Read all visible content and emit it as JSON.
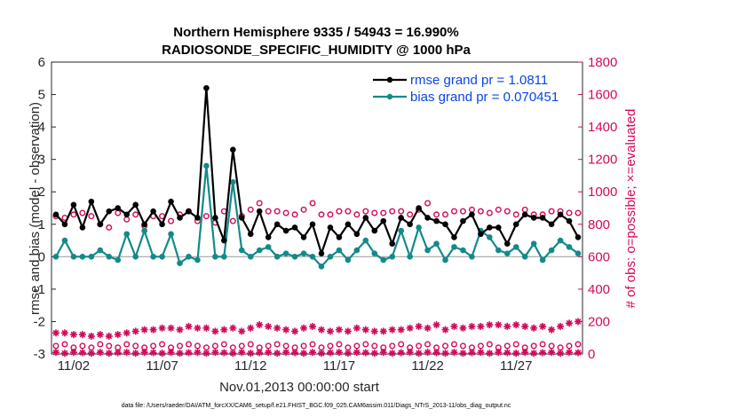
{
  "chart_data": {
    "type": "line",
    "title": "Northern Hemisphere 9335 / 54943 = 16.990%",
    "subtitle": "RADIOSONDE_SPECIFIC_HUMIDITY @ 1000 hPa",
    "xlabel": "Nov.01,2013 00:00:00 start",
    "ylabel": "rmse and bias (model - observation)",
    "y2label": "# of obs: o=possible; ×=evaluated",
    "footnote": "data file: /Users/raeder/DAI/ATM_forcXX/CAM6_setup/f.e21.FHIST_BGC.f09_025.CAM6assim.011/Diags_NTrS_2013-11/obs_diag_output.nc",
    "xlim": [
      0.5,
      60.5
    ],
    "ylim": [
      -3,
      6
    ],
    "y2lim": [
      0,
      1800
    ],
    "x_ticks": [
      {
        "x": 3,
        "label": "11/02"
      },
      {
        "x": 13,
        "label": "11/07"
      },
      {
        "x": 23,
        "label": "11/12"
      },
      {
        "x": 33,
        "label": "11/17"
      },
      {
        "x": 43,
        "label": "11/22"
      },
      {
        "x": 53,
        "label": "11/27"
      }
    ],
    "y_ticks": [
      -3,
      -2,
      -1,
      0,
      1,
      2,
      3,
      4,
      5,
      6
    ],
    "y2_ticks": [
      0,
      200,
      400,
      600,
      800,
      1000,
      1200,
      1400,
      1600,
      1800
    ],
    "colors": {
      "rmse": "#000000",
      "bias": "#138a8a",
      "obs": "#d10a5a",
      "legend_text": "#0b45e6",
      "zero_line": "#a6a6a6"
    },
    "series": [
      {
        "name": "rmse grand pr = 1.0811",
        "key": "rmse",
        "values": [
          1.3,
          1.0,
          1.6,
          0.9,
          1.7,
          1.0,
          1.4,
          1.5,
          1.3,
          1.6,
          1.0,
          1.4,
          1.0,
          1.7,
          1.2,
          1.4,
          1.2,
          5.2,
          1.2,
          0.5,
          3.3,
          1.2,
          0.7,
          1.4,
          0.6,
          1.0,
          0.8,
          0.9,
          0.6,
          1.0,
          0.1,
          0.9,
          0.6,
          1.0,
          0.7,
          1.2,
          0.8,
          1.1,
          0.4,
          1.2,
          1.0,
          1.5,
          1.2,
          1.1,
          1.0,
          0.6,
          1.1,
          1.3,
          0.7,
          0.9,
          0.9,
          0.4,
          1.0,
          1.3,
          1.2,
          1.2,
          1.0,
          1.3,
          1.1,
          0.6
        ]
      },
      {
        "name": "bias grand pr = 0.070451",
        "key": "bias",
        "values": [
          0.0,
          0.5,
          0.0,
          0.0,
          0.0,
          0.2,
          0.0,
          -0.1,
          0.7,
          0.0,
          0.8,
          0.0,
          0.0,
          0.7,
          -0.2,
          0.0,
          -0.1,
          2.8,
          0.0,
          0.0,
          2.3,
          0.2,
          0.0,
          0.2,
          0.3,
          0.0,
          0.1,
          0.0,
          0.1,
          0.0,
          -0.3,
          0.0,
          0.2,
          -0.1,
          0.2,
          0.5,
          0.1,
          -0.1,
          0.0,
          0.8,
          0.0,
          0.9,
          0.2,
          0.4,
          -0.1,
          0.3,
          0.2,
          0.0,
          0.8,
          0.6,
          0.2,
          0.1,
          0.3,
          0.0,
          0.4,
          -0.1,
          0.2,
          0.5,
          0.3,
          0.1
        ]
      },
      {
        "name": "possible",
        "key": "possible",
        "axis": "right",
        "values": [
          850,
          840,
          860,
          870,
          850,
          800,
          780,
          870,
          830,
          860,
          790,
          850,
          850,
          820,
          860,
          880,
          820,
          850,
          810,
          880,
          820,
          850,
          890,
          930,
          880,
          880,
          870,
          860,
          890,
          930,
          860,
          860,
          880,
          880,
          860,
          880,
          870,
          870,
          880,
          880,
          860,
          890,
          930,
          860,
          860,
          880,
          880,
          890,
          880,
          870,
          890,
          880,
          860,
          890,
          860,
          860,
          880,
          880,
          870,
          870
        ]
      },
      {
        "name": "possible_low",
        "key": "possible_low",
        "axis": "right",
        "values": [
          50,
          60,
          40,
          50,
          40,
          60,
          50,
          40,
          60,
          50,
          40,
          50,
          60,
          40,
          50,
          60,
          50,
          40,
          50,
          60,
          40,
          50,
          60,
          40,
          50,
          60,
          50,
          40,
          50,
          60,
          40,
          50,
          60,
          40,
          50,
          60,
          50,
          40,
          50,
          60,
          40,
          50,
          60,
          40,
          50,
          60,
          50,
          40,
          50,
          60,
          40,
          50,
          60,
          40,
          50,
          60,
          50,
          40,
          50,
          60
        ]
      },
      {
        "name": "evaluated",
        "key": "evaluated",
        "axis": "right",
        "values": [
          130,
          130,
          120,
          120,
          110,
          120,
          110,
          120,
          130,
          140,
          150,
          150,
          160,
          160,
          150,
          170,
          160,
          160,
          140,
          150,
          160,
          140,
          160,
          180,
          170,
          160,
          150,
          140,
          160,
          170,
          150,
          140,
          150,
          140,
          160,
          150,
          140,
          140,
          150,
          150,
          160,
          170,
          160,
          180,
          150,
          170,
          160,
          170,
          170,
          180,
          180,
          170,
          180,
          170,
          160,
          170,
          150,
          170,
          190,
          200
        ]
      },
      {
        "name": "evaluated_low",
        "key": "evaluated_low",
        "axis": "right",
        "values": [
          10,
          5,
          10,
          8,
          5,
          10,
          5,
          8,
          10,
          5,
          10,
          8,
          5,
          10,
          5,
          8,
          10,
          5,
          10,
          8,
          5,
          10,
          5,
          8,
          10,
          5,
          10,
          8,
          5,
          10,
          5,
          8,
          10,
          5,
          10,
          8,
          5,
          10,
          5,
          8,
          10,
          5,
          10,
          8,
          5,
          10,
          5,
          8,
          10,
          5,
          10,
          8,
          5,
          10,
          5,
          8,
          10,
          5,
          10,
          8
        ]
      }
    ],
    "legend_position": "top-right"
  }
}
